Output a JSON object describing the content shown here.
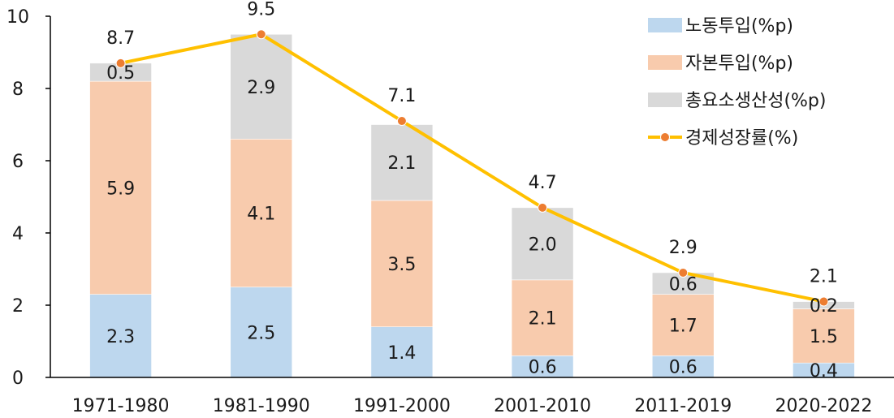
{
  "chart_data": {
    "type": "bar",
    "stacked": true,
    "categories": [
      "1971-1980",
      "1981-1990",
      "1991-2000",
      "2001-2010",
      "2011-2019",
      "2020-2022"
    ],
    "ylim": [
      0,
      10
    ],
    "yticks": [
      0,
      2,
      4,
      6,
      8,
      10
    ],
    "grid": false,
    "legend_position": "top-right",
    "series": [
      {
        "name": "노동투입(%p)",
        "type": "bar",
        "color": "#bdd7ee",
        "values": [
          2.3,
          2.5,
          1.4,
          0.6,
          0.6,
          0.4
        ],
        "labels": [
          "2.3",
          "2.5",
          "1.4",
          "0.6",
          "0.6",
          "0.4"
        ]
      },
      {
        "name": "자본투입(%p)",
        "type": "bar",
        "color": "#f8cbad",
        "values": [
          5.9,
          4.1,
          3.5,
          2.1,
          1.7,
          1.5
        ],
        "labels": [
          "5.9",
          "4.1",
          "3.5",
          "2.1",
          "1.7",
          "1.5"
        ]
      },
      {
        "name": "총요소생산성(%p)",
        "type": "bar",
        "color": "#d9d9d9",
        "values": [
          0.5,
          2.9,
          2.1,
          2.0,
          0.6,
          0.2
        ],
        "labels": [
          "0.5",
          "2.9",
          "2.1",
          "2.0",
          "0.6",
          "0.2"
        ]
      },
      {
        "name": "경제성장률(%)",
        "type": "line",
        "color": "#ffc000",
        "marker_color": "#ed7d31",
        "values": [
          8.7,
          9.5,
          7.1,
          4.7,
          2.9,
          2.1
        ],
        "labels": [
          "8.7",
          "9.5",
          "7.1",
          "4.7",
          "2.9",
          "2.1"
        ]
      }
    ]
  }
}
